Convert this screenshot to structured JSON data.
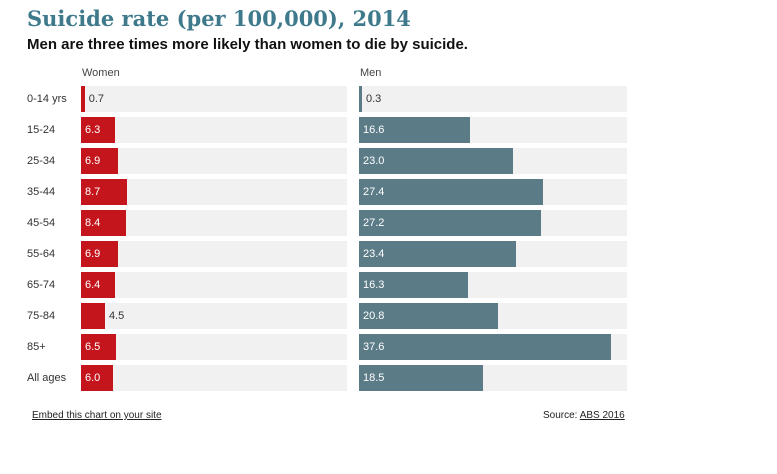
{
  "header": {
    "title": "Suicide rate (per 100,000), 2014",
    "subtitle": "Men are three times more likely than women to die by suicide."
  },
  "footer": {
    "embed_link": "Embed this chart on your site",
    "source_label": "Source: ",
    "source_link": "ABS 2016"
  },
  "colors": {
    "women": "#c4151c",
    "men": "#5b7b87",
    "track": "#f1f1f1",
    "title": "#3e7a8c"
  },
  "chart_data": {
    "type": "bar",
    "orientation": "horizontal",
    "title": "Suicide rate (per 100,000), 2014",
    "subtitle": "Men are three times more likely than women to die by suicide.",
    "categories": [
      "0-14 yrs",
      "15-24",
      "25-34",
      "35-44",
      "45-54",
      "55-64",
      "65-74",
      "75-84",
      "85+",
      "All ages"
    ],
    "series": [
      {
        "name": "Women",
        "values": [
          0.7,
          6.3,
          6.9,
          8.7,
          8.4,
          6.9,
          6.4,
          4.5,
          6.5,
          6.0
        ],
        "xlim": [
          0,
          50
        ]
      },
      {
        "name": "Men",
        "values": [
          0.3,
          16.6,
          23.0,
          27.4,
          27.2,
          23.4,
          16.3,
          20.8,
          37.6,
          18.5
        ],
        "xlim": [
          0,
          40
        ]
      }
    ],
    "grid": false,
    "legend": "panel-headers"
  }
}
